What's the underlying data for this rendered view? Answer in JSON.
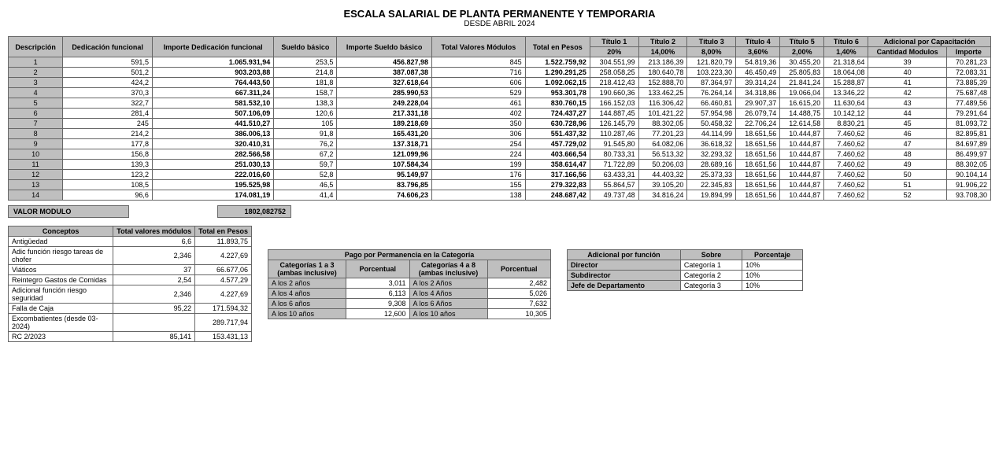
{
  "title": "ESCALA SALARIAL DE PLANTA PERMANENTE Y TEMPORARIA",
  "subtitle": "DESDE ABRIL 2024",
  "main": {
    "headers": {
      "descripcion": "Descripción",
      "dedicacion": "Dedicación funcional",
      "importe_dedicacion": "Importe Dedicación funcional",
      "sueldo_basico": "Sueldo básico",
      "importe_sueldo": "Importe Sueldo básico",
      "total_valores": "Total Valores Módulos",
      "total_pesos": "Total en Pesos",
      "titulo1": "Título 1",
      "pct1": "20%",
      "titulo2": "Título 2",
      "pct2": "14,00%",
      "titulo3": "Título 3",
      "pct3": "8,00%",
      "titulo4": "Título 4",
      "pct4": "3,60%",
      "titulo5": "Título 5",
      "pct5": "2,00%",
      "titulo6": "Título 6",
      "pct6": "1,40%",
      "adicional": "Adicional por Capacitación",
      "cantidad": "Cantidad Modulos",
      "importe": "Importe"
    },
    "rows": [
      {
        "n": "1",
        "df": "591,5",
        "idf": "1.065.931,94",
        "sb": "253,5",
        "isb": "456.827,98",
        "tvm": "845",
        "tp": "1.522.759,92",
        "t1": "304.551,99",
        "t2": "213.186,39",
        "t3": "121.820,79",
        "t4": "54.819,36",
        "t5": "30.455,20",
        "t6": "21.318,64",
        "cm": "39",
        "imp": "70.281,23"
      },
      {
        "n": "2",
        "df": "501,2",
        "idf": "903.203,88",
        "sb": "214,8",
        "isb": "387.087,38",
        "tvm": "716",
        "tp": "1.290.291,25",
        "t1": "258.058,25",
        "t2": "180.640,78",
        "t3": "103.223,30",
        "t4": "46.450,49",
        "t5": "25.805,83",
        "t6": "18.064,08",
        "cm": "40",
        "imp": "72.083,31"
      },
      {
        "n": "3",
        "df": "424,2",
        "idf": "764.443,50",
        "sb": "181,8",
        "isb": "327.618,64",
        "tvm": "606",
        "tp": "1.092.062,15",
        "t1": "218.412,43",
        "t2": "152.888,70",
        "t3": "87.364,97",
        "t4": "39.314,24",
        "t5": "21.841,24",
        "t6": "15.288,87",
        "cm": "41",
        "imp": "73.885,39"
      },
      {
        "n": "4",
        "df": "370,3",
        "idf": "667.311,24",
        "sb": "158,7",
        "isb": "285.990,53",
        "tvm": "529",
        "tp": "953.301,78",
        "t1": "190.660,36",
        "t2": "133.462,25",
        "t3": "76.264,14",
        "t4": "34.318,86",
        "t5": "19.066,04",
        "t6": "13.346,22",
        "cm": "42",
        "imp": "75.687,48"
      },
      {
        "n": "5",
        "df": "322,7",
        "idf": "581.532,10",
        "sb": "138,3",
        "isb": "249.228,04",
        "tvm": "461",
        "tp": "830.760,15",
        "t1": "166.152,03",
        "t2": "116.306,42",
        "t3": "66.460,81",
        "t4": "29.907,37",
        "t5": "16.615,20",
        "t6": "11.630,64",
        "cm": "43",
        "imp": "77.489,56"
      },
      {
        "n": "6",
        "df": "281,4",
        "idf": "507.106,09",
        "sb": "120,6",
        "isb": "217.331,18",
        "tvm": "402",
        "tp": "724.437,27",
        "t1": "144.887,45",
        "t2": "101.421,22",
        "t3": "57.954,98",
        "t4": "26.079,74",
        "t5": "14.488,75",
        "t6": "10.142,12",
        "cm": "44",
        "imp": "79.291,64"
      },
      {
        "n": "7",
        "df": "245",
        "idf": "441.510,27",
        "sb": "105",
        "isb": "189.218,69",
        "tvm": "350",
        "tp": "630.728,96",
        "t1": "126.145,79",
        "t2": "88.302,05",
        "t3": "50.458,32",
        "t4": "22.706,24",
        "t5": "12.614,58",
        "t6": "8.830,21",
        "cm": "45",
        "imp": "81.093,72"
      },
      {
        "n": "8",
        "df": "214,2",
        "idf": "386.006,13",
        "sb": "91,8",
        "isb": "165.431,20",
        "tvm": "306",
        "tp": "551.437,32",
        "t1": "110.287,46",
        "t2": "77.201,23",
        "t3": "44.114,99",
        "t4": "18.651,56",
        "t5": "10.444,87",
        "t6": "7.460,62",
        "cm": "46",
        "imp": "82.895,81"
      },
      {
        "n": "9",
        "df": "177,8",
        "idf": "320.410,31",
        "sb": "76,2",
        "isb": "137.318,71",
        "tvm": "254",
        "tp": "457.729,02",
        "t1": "91.545,80",
        "t2": "64.082,06",
        "t3": "36.618,32",
        "t4": "18.651,56",
        "t5": "10.444,87",
        "t6": "7.460,62",
        "cm": "47",
        "imp": "84.697,89"
      },
      {
        "n": "10",
        "df": "156,8",
        "idf": "282.566,58",
        "sb": "67,2",
        "isb": "121.099,96",
        "tvm": "224",
        "tp": "403.666,54",
        "t1": "80.733,31",
        "t2": "56.513,32",
        "t3": "32.293,32",
        "t4": "18.651,56",
        "t5": "10.444,87",
        "t6": "7.460,62",
        "cm": "48",
        "imp": "86.499,97"
      },
      {
        "n": "11",
        "df": "139,3",
        "idf": "251.030,13",
        "sb": "59,7",
        "isb": "107.584,34",
        "tvm": "199",
        "tp": "358.614,47",
        "t1": "71.722,89",
        "t2": "50.206,03",
        "t3": "28.689,16",
        "t4": "18.651,56",
        "t5": "10.444,87",
        "t6": "7.460,62",
        "cm": "49",
        "imp": "88.302,05"
      },
      {
        "n": "12",
        "df": "123,2",
        "idf": "222.016,60",
        "sb": "52,8",
        "isb": "95.149,97",
        "tvm": "176",
        "tp": "317.166,56",
        "t1": "63.433,31",
        "t2": "44.403,32",
        "t3": "25.373,33",
        "t4": "18.651,56",
        "t5": "10.444,87",
        "t6": "7.460,62",
        "cm": "50",
        "imp": "90.104,14"
      },
      {
        "n": "13",
        "df": "108,5",
        "idf": "195.525,98",
        "sb": "46,5",
        "isb": "83.796,85",
        "tvm": "155",
        "tp": "279.322,83",
        "t1": "55.864,57",
        "t2": "39.105,20",
        "t3": "22.345,83",
        "t4": "18.651,56",
        "t5": "10.444,87",
        "t6": "7.460,62",
        "cm": "51",
        "imp": "91.906,22"
      },
      {
        "n": "14",
        "df": "96,6",
        "idf": "174.081,19",
        "sb": "41,4",
        "isb": "74.606,23",
        "tvm": "138",
        "tp": "248.687,42",
        "t1": "49.737,48",
        "t2": "34.816,24",
        "t3": "19.894,99",
        "t4": "18.651,56",
        "t5": "10.444,87",
        "t6": "7.460,62",
        "cm": "52",
        "imp": "93.708,30"
      }
    ]
  },
  "valor_modulo_label": "VALOR MODULO",
  "valor_modulo": "1802,082752",
  "conceptos": {
    "h1": "Conceptos",
    "h2": "Total valores módulos",
    "h3": "Total en Pesos",
    "rows": [
      {
        "c": "Antigüedad",
        "m": "6,6",
        "p": "11.893,75"
      },
      {
        "c": "Adic función riesgo tareas de chofer",
        "m": "2,346",
        "p": "4.227,69"
      },
      {
        "c": "Viáticos",
        "m": "37",
        "p": "66.677,06"
      },
      {
        "c": "Reintegro Gastos de Comidas",
        "m": "2,54",
        "p": "4.577,29"
      },
      {
        "c": "Adicional función riesgo seguridad",
        "m": "2,346",
        "p": "4.227,69"
      },
      {
        "c": "Falla de Caja",
        "m": "95,22",
        "p": "171.594,32"
      },
      {
        "c": "Excombatientes (desde 03-2024)",
        "m": "",
        "p": "289.717,94"
      },
      {
        "c": "RC 2/2023",
        "m": "85,141",
        "p": "153.431,13"
      }
    ]
  },
  "permanencia": {
    "title": "Pago por Permanencia en la Categoría",
    "h1": "Categorías 1 a 3 (ambas inclusive)",
    "h2": "Porcentual",
    "h3": "Categorías 4 a 8 (ambas inclusive)",
    "h4": "Porcentual",
    "rows": [
      {
        "a": "A los 2 años",
        "ap": "3,011",
        "b": "A los 2 Años",
        "bp": "2,482"
      },
      {
        "a": "A los 4 años",
        "ap": "6,113",
        "b": "A los 4 Años",
        "bp": "5,026"
      },
      {
        "a": "A los 6 años",
        "ap": "9,308",
        "b": "A los 6 Años",
        "bp": "7,632"
      },
      {
        "a": "A los 10 años",
        "ap": "12,600",
        "b": "A los 10 años",
        "bp": "10,305"
      }
    ]
  },
  "funcion": {
    "h1": "Adicional por función",
    "h2": "Sobre",
    "h3": "Porcentaje",
    "rows": [
      {
        "f": "Director",
        "s": "Categoría 1",
        "p": "10%"
      },
      {
        "f": "Subdirector",
        "s": "Categoría 2",
        "p": "10%"
      },
      {
        "f": "Jefe de Departamento",
        "s": "Categoría 3",
        "p": "10%"
      }
    ]
  }
}
